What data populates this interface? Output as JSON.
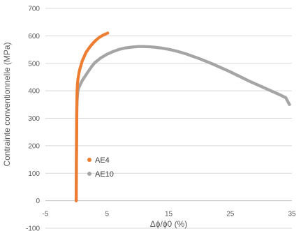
{
  "chart_data": {
    "type": "scatter",
    "xlabel": "Δϕ/ϕ0 (%)",
    "ylabel": "Contrainte conventionnelle (MPa)",
    "xlim": [
      -5,
      35
    ],
    "ylim": [
      -100,
      700
    ],
    "x_ticks": [
      -5,
      5,
      15,
      25,
      35
    ],
    "x_tick_labels": [
      "-5",
      "5",
      "15",
      "25",
      "35"
    ],
    "y_ticks": [
      -100,
      0,
      100,
      200,
      300,
      400,
      500,
      600,
      700
    ],
    "y_tick_labels": [
      "-100",
      "0",
      "100",
      "200",
      "300",
      "400",
      "500",
      "600",
      "700"
    ],
    "grid": "horizontal",
    "legend_position": "center-left",
    "series": [
      {
        "name": "AE4",
        "color": "#ED7D31",
        "points": [
          [
            0.0,
            0
          ],
          [
            0.0,
            40
          ],
          [
            0.02,
            80
          ],
          [
            0.03,
            130
          ],
          [
            0.05,
            180
          ],
          [
            0.06,
            230
          ],
          [
            0.08,
            280
          ],
          [
            0.1,
            330
          ],
          [
            0.12,
            370
          ],
          [
            0.15,
            400
          ],
          [
            0.2,
            425
          ],
          [
            0.3,
            445
          ],
          [
            0.45,
            465
          ],
          [
            0.6,
            480
          ],
          [
            0.8,
            495
          ],
          [
            1.0,
            510
          ],
          [
            1.3,
            525
          ],
          [
            1.6,
            540
          ],
          [
            2.0,
            553
          ],
          [
            2.4,
            565
          ],
          [
            2.8,
            575
          ],
          [
            3.2,
            584
          ],
          [
            3.6,
            592
          ],
          [
            4.0,
            598
          ],
          [
            4.4,
            603
          ],
          [
            4.8,
            607
          ],
          [
            5.1,
            610
          ]
        ]
      },
      {
        "name": "AE10",
        "color": "#A5A5A5",
        "points": [
          [
            0.0,
            0
          ],
          [
            0.0,
            50
          ],
          [
            0.02,
            100
          ],
          [
            0.03,
            150
          ],
          [
            0.04,
            200
          ],
          [
            0.06,
            250
          ],
          [
            0.08,
            300
          ],
          [
            0.1,
            340
          ],
          [
            0.15,
            370
          ],
          [
            0.25,
            395
          ],
          [
            0.4,
            410
          ],
          [
            0.7,
            425
          ],
          [
            1.0,
            438
          ],
          [
            1.5,
            455
          ],
          [
            2.0,
            472
          ],
          [
            2.5,
            488
          ],
          [
            3.0,
            502
          ],
          [
            4.0,
            520
          ],
          [
            5.0,
            533
          ],
          [
            6.0,
            543
          ],
          [
            7.0,
            551
          ],
          [
            8.0,
            556
          ],
          [
            9.0,
            559
          ],
          [
            10.0,
            561
          ],
          [
            11.0,
            561
          ],
          [
            12.0,
            560
          ],
          [
            13.0,
            558
          ],
          [
            14.0,
            555
          ],
          [
            15.0,
            551
          ],
          [
            16.0,
            546
          ],
          [
            17.0,
            540
          ],
          [
            18.0,
            533
          ],
          [
            19.0,
            525
          ],
          [
            20.0,
            517
          ],
          [
            21.0,
            508
          ],
          [
            22.0,
            499
          ],
          [
            23.0,
            489
          ],
          [
            24.0,
            479
          ],
          [
            25.0,
            469
          ],
          [
            26.0,
            458
          ],
          [
            27.0,
            447
          ],
          [
            28.0,
            436
          ],
          [
            29.0,
            426
          ],
          [
            30.0,
            416
          ],
          [
            31.0,
            406
          ],
          [
            32.0,
            396
          ],
          [
            33.0,
            386
          ],
          [
            34.0,
            375
          ],
          [
            34.6,
            350
          ]
        ]
      }
    ]
  }
}
